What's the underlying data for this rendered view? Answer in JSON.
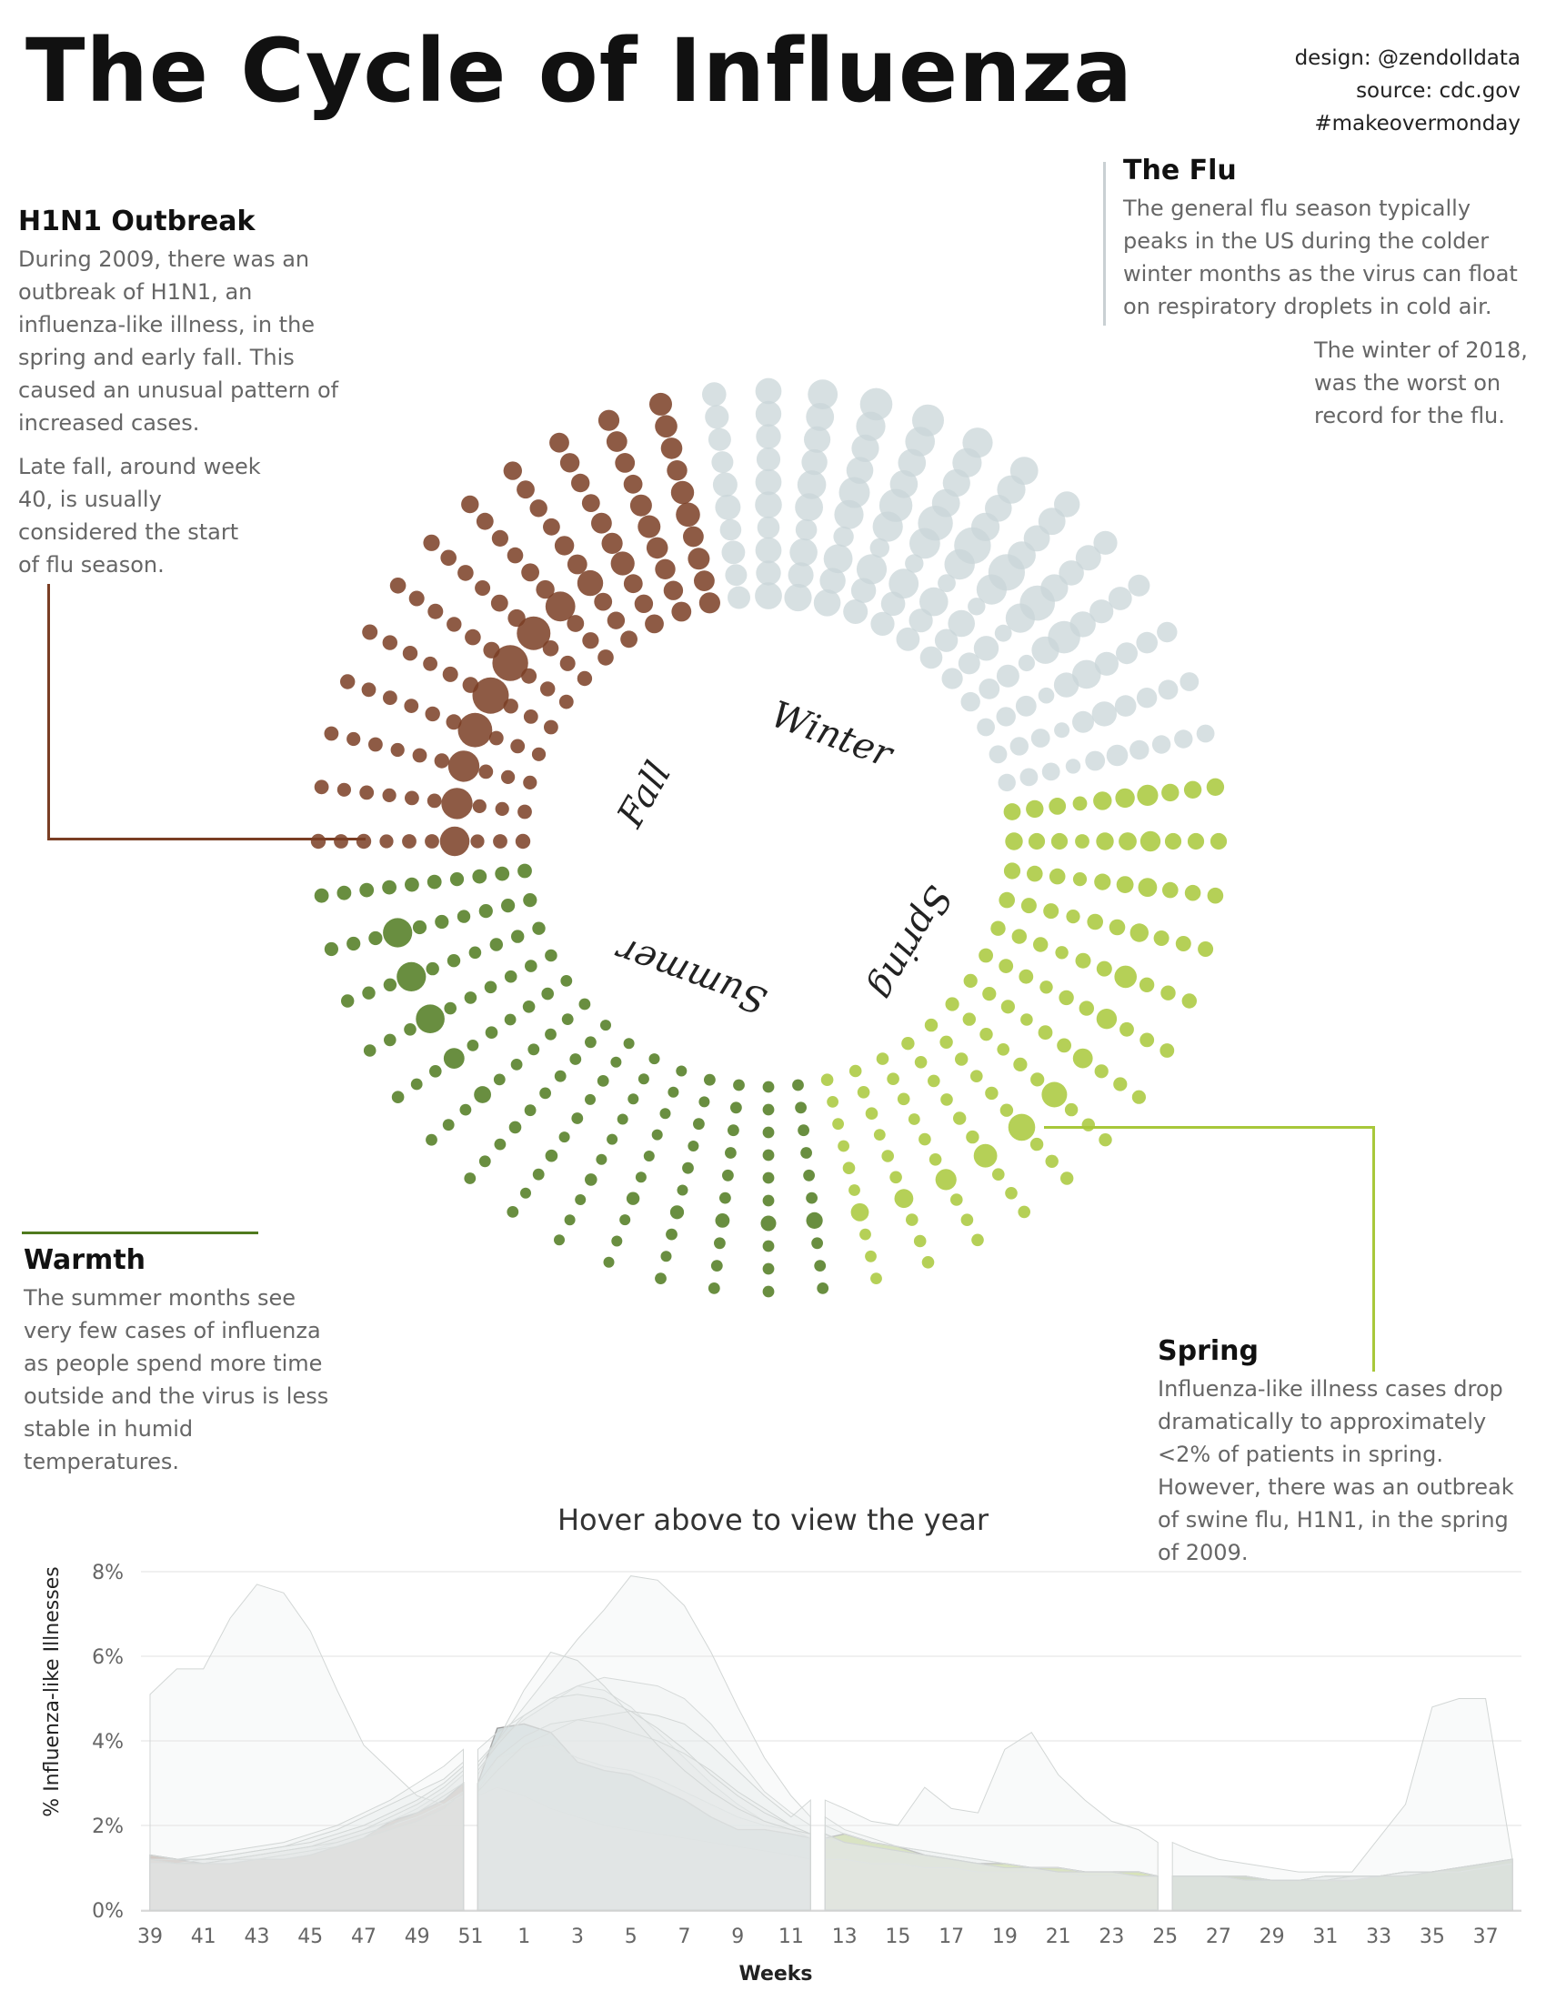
{
  "title": "The Cycle of Influenza",
  "credits": [
    "design: @zendolldata",
    "source: cdc.gov",
    "#makeovermonday"
  ],
  "annotations": {
    "h1n1": {
      "heading": "H1N1 Outbreak",
      "p1": "During 2009, there was an outbreak of H1N1, an influenza-like illness, in the spring and early fall. This caused an unusual pattern of increased cases.",
      "p2": "Late fall, around week 40, is usually considered the start of flu season."
    },
    "flu": {
      "heading": "The Flu",
      "p1": "The general flu season typically peaks in the US during the colder winter months as the virus can float on respiratory droplets in cold air.",
      "p2": "The winter of 2018, was the worst on record for the flu."
    },
    "warmth": {
      "heading": "Warmth",
      "p1": "The summer months see very few cases of influenza as people spend more time outside and the virus is less stable in humid temperatures."
    },
    "spring": {
      "heading": "Spring",
      "p1": "Influenza-like illness cases drop dramatically to approximately <2% of patients in spring. However, there was an outbreak of swine flu, H1N1, in the spring of 2009."
    }
  },
  "season_labels": {
    "winter": "Winter",
    "spring": "Spring",
    "summer": "Summer",
    "fall": "Fall"
  },
  "colors": {
    "fall": "#7a3e24",
    "winter": "#c9d6d8",
    "spring": "#a8c83a",
    "summer": "#4f7a1e",
    "rule_flu": "#c9d0d3"
  },
  "hover_label": "Hover above to view the year",
  "chart_data": [
    {
      "type": "scatter",
      "title": "",
      "description_free": true,
      "start_week": 39,
      "week_order": [
        39,
        40,
        41,
        42,
        43,
        44,
        45,
        46,
        47,
        48,
        49,
        50,
        51,
        52,
        1,
        2,
        3,
        4,
        5,
        6,
        7,
        8,
        9,
        10,
        11,
        12,
        13,
        14,
        15,
        16,
        17,
        18,
        19,
        20,
        21,
        22,
        23,
        24,
        25,
        26,
        27,
        28,
        29,
        30,
        31,
        32,
        33,
        34,
        35,
        36,
        37,
        38
      ],
      "seasons": {
        "fall": [
          39,
          40,
          41,
          42,
          43,
          44,
          45,
          46,
          47,
          48,
          49,
          50
        ],
        "winter": [
          51,
          52,
          1,
          2,
          3,
          4,
          5,
          6,
          7,
          8,
          9,
          10,
          11
        ],
        "spring": [
          12,
          13,
          14,
          15,
          16,
          17,
          18,
          19,
          20,
          21,
          22,
          23,
          24
        ],
        "summer": [
          25,
          26,
          27,
          28,
          29,
          30,
          31,
          32,
          33,
          34,
          35,
          36,
          37,
          38
        ]
      },
      "years": 10,
      "values_pct_ili": [
        [
          1.3,
          1.2,
          1.1,
          1.1,
          1.2,
          1.2,
          1.3,
          1.5,
          1.7,
          2.1,
          2.3,
          2.6,
          3.0,
          4.3,
          4.4,
          4.2,
          3.5,
          3.3,
          3.2,
          2.9,
          2.6,
          2.2,
          1.9,
          1.9,
          1.8,
          1.7,
          1.8,
          1.6,
          1.5,
          1.3,
          1.2,
          1.1,
          1.1,
          1.0,
          1.0,
          0.9,
          0.9,
          0.9,
          0.8,
          0.8,
          0.8,
          0.8,
          0.7,
          0.7,
          0.7,
          0.7,
          0.8,
          0.8,
          0.9,
          1.0,
          1.1,
          1.2
        ],
        [
          1.2,
          1.1,
          1.1,
          1.2,
          1.2,
          1.3,
          1.4,
          1.6,
          1.8,
          2.0,
          2.2,
          2.5,
          2.8,
          3.6,
          3.8,
          3.9,
          3.6,
          3.4,
          3.3,
          3.1,
          2.8,
          2.5,
          2.2,
          2.0,
          1.9,
          1.8,
          1.6,
          1.5,
          1.4,
          1.3,
          1.2,
          1.1,
          1.0,
          1.0,
          0.9,
          0.9,
          0.9,
          0.8,
          0.8,
          0.8,
          0.8,
          0.7,
          0.7,
          0.7,
          0.7,
          0.8,
          0.8,
          0.9,
          0.9,
          1.0,
          1.1,
          1.2
        ],
        [
          1.1,
          1.1,
          1.2,
          1.2,
          1.3,
          1.4,
          1.5,
          1.7,
          1.9,
          2.1,
          2.4,
          2.8,
          3.2,
          4.0,
          4.5,
          4.9,
          5.3,
          5.2,
          4.8,
          4.2,
          3.6,
          3.0,
          2.5,
          2.1,
          1.9,
          1.7,
          1.6,
          1.5,
          1.4,
          1.3,
          1.2,
          1.1,
          1.0,
          1.0,
          0.9,
          0.9,
          0.9,
          0.8,
          0.8,
          0.8,
          0.8,
          0.8,
          0.7,
          0.7,
          0.8,
          0.8,
          0.8,
          0.9,
          0.9,
          1.0,
          1.1,
          1.2
        ],
        [
          5.1,
          5.7,
          5.7,
          6.9,
          7.7,
          7.5,
          6.6,
          5.2,
          3.9,
          3.3,
          2.7,
          2.5,
          2.7,
          2.9,
          2.7,
          2.4,
          2.2,
          2.0,
          1.9,
          1.8,
          1.7,
          1.6,
          1.5,
          1.4,
          1.3,
          1.2,
          1.2,
          1.1,
          1.1,
          1.0,
          1.0,
          0.9,
          0.9,
          0.9,
          0.9,
          0.8,
          0.8,
          0.8,
          0.8,
          0.8,
          0.8,
          0.7,
          0.7,
          0.7,
          0.7,
          0.8,
          0.8,
          0.8,
          0.9,
          0.9,
          1.0,
          1.1
        ],
        [
          1.2,
          1.2,
          1.3,
          1.4,
          1.5,
          1.6,
          1.8,
          2.0,
          2.3,
          2.6,
          3.0,
          3.4,
          3.8,
          4.2,
          4.6,
          5.0,
          5.3,
          5.5,
          5.4,
          5.3,
          5.0,
          4.4,
          3.6,
          2.8,
          2.3,
          2.0,
          1.8,
          1.6,
          1.5,
          1.4,
          1.3,
          1.2,
          1.1,
          1.0,
          1.0,
          0.9,
          0.9,
          0.9,
          0.8,
          0.8,
          0.8,
          0.8,
          0.7,
          0.7,
          0.8,
          0.8,
          0.8,
          0.9,
          0.9,
          1.0,
          1.1,
          1.2
        ],
        [
          1.2,
          1.2,
          1.2,
          1.3,
          1.4,
          1.5,
          1.7,
          1.9,
          2.2,
          2.5,
          2.8,
          3.1,
          3.5,
          4.0,
          4.8,
          5.6,
          6.4,
          7.1,
          7.9,
          7.8,
          7.2,
          6.1,
          4.8,
          3.6,
          2.7,
          2.2,
          1.9,
          1.7,
          1.5,
          1.4,
          1.3,
          1.2,
          1.1,
          1.0,
          1.0,
          0.9,
          0.9,
          0.8,
          0.8,
          0.8,
          0.8,
          0.7,
          0.7,
          0.7,
          0.7,
          0.8,
          0.8,
          0.8,
          0.9,
          1.0,
          1.1,
          1.2
        ],
        [
          1.1,
          1.1,
          1.1,
          1.2,
          1.2,
          1.3,
          1.4,
          1.5,
          1.7,
          1.9,
          2.1,
          2.4,
          2.8,
          3.3,
          3.9,
          4.2,
          4.5,
          4.6,
          4.7,
          4.6,
          4.4,
          3.9,
          3.3,
          2.7,
          2.2,
          2.6,
          2.4,
          2.1,
          2.0,
          2.9,
          2.4,
          2.3,
          3.8,
          4.2,
          3.2,
          2.6,
          2.1,
          1.9,
          1.6,
          1.4,
          1.2,
          1.1,
          1.0,
          0.9,
          0.9,
          0.9,
          1.7,
          2.5,
          4.8,
          5.0,
          5.0,
          1.2
        ],
        [
          1.3,
          1.2,
          1.2,
          1.2,
          1.3,
          1.4,
          1.5,
          1.6,
          1.8,
          2.0,
          2.3,
          2.7,
          3.0,
          3.6,
          4.1,
          4.4,
          4.5,
          4.4,
          4.2,
          4.0,
          3.7,
          3.3,
          2.8,
          2.4,
          2.0,
          1.8,
          1.6,
          1.5,
          1.4,
          1.3,
          1.2,
          1.1,
          1.0,
          1.0,
          0.9,
          0.9,
          0.9,
          0.8,
          0.8,
          0.8,
          0.8,
          0.8,
          0.7,
          0.7,
          0.8,
          0.8,
          0.8,
          0.9,
          0.9,
          1.0,
          1.1,
          1.2
        ],
        [
          1.2,
          1.1,
          1.1,
          1.2,
          1.3,
          1.4,
          1.5,
          1.7,
          1.9,
          2.2,
          2.5,
          2.9,
          3.3,
          3.9,
          4.6,
          5.0,
          5.1,
          5.0,
          4.7,
          4.3,
          3.8,
          3.2,
          2.7,
          2.3,
          2.0,
          1.8,
          1.6,
          1.5,
          1.4,
          1.3,
          1.2,
          1.1,
          1.0,
          1.0,
          0.9,
          0.9,
          0.9,
          0.8,
          0.8,
          0.8,
          0.8,
          0.7,
          0.7,
          0.7,
          0.7,
          0.8,
          0.8,
          0.8,
          0.9,
          1.0,
          1.1,
          1.2
        ],
        [
          1.3,
          1.2,
          1.2,
          1.3,
          1.4,
          1.5,
          1.6,
          1.8,
          2.0,
          2.3,
          2.6,
          3.0,
          3.4,
          4.0,
          5.2,
          6.1,
          5.9,
          5.3,
          4.6,
          3.9,
          3.3,
          2.8,
          2.4,
          2.1,
          1.9,
          1.8,
          1.6,
          1.5,
          1.4,
          1.3,
          1.2,
          1.1,
          1.0,
          1.0,
          0.9,
          0.9,
          0.9,
          0.8,
          0.8,
          0.8,
          0.8,
          0.8,
          0.7,
          0.7,
          0.8,
          0.8,
          0.8,
          0.9,
          0.9,
          1.0,
          1.1,
          1.2
        ]
      ]
    },
    {
      "type": "area",
      "title": "",
      "xlabel": "Weeks",
      "ylabel": "% Influenza-like Illnesses",
      "ylim": [
        0,
        8
      ],
      "yticks": [
        "0%",
        "2%",
        "4%",
        "6%",
        "8%"
      ],
      "x_tick_labels": [
        "39",
        "41",
        "43",
        "45",
        "47",
        "49",
        "51",
        "1",
        "3",
        "5",
        "7",
        "9",
        "11",
        "13",
        "15",
        "17",
        "19",
        "21",
        "23",
        "25",
        "27",
        "29",
        "31",
        "33",
        "35",
        "37"
      ],
      "grid": true
    }
  ]
}
